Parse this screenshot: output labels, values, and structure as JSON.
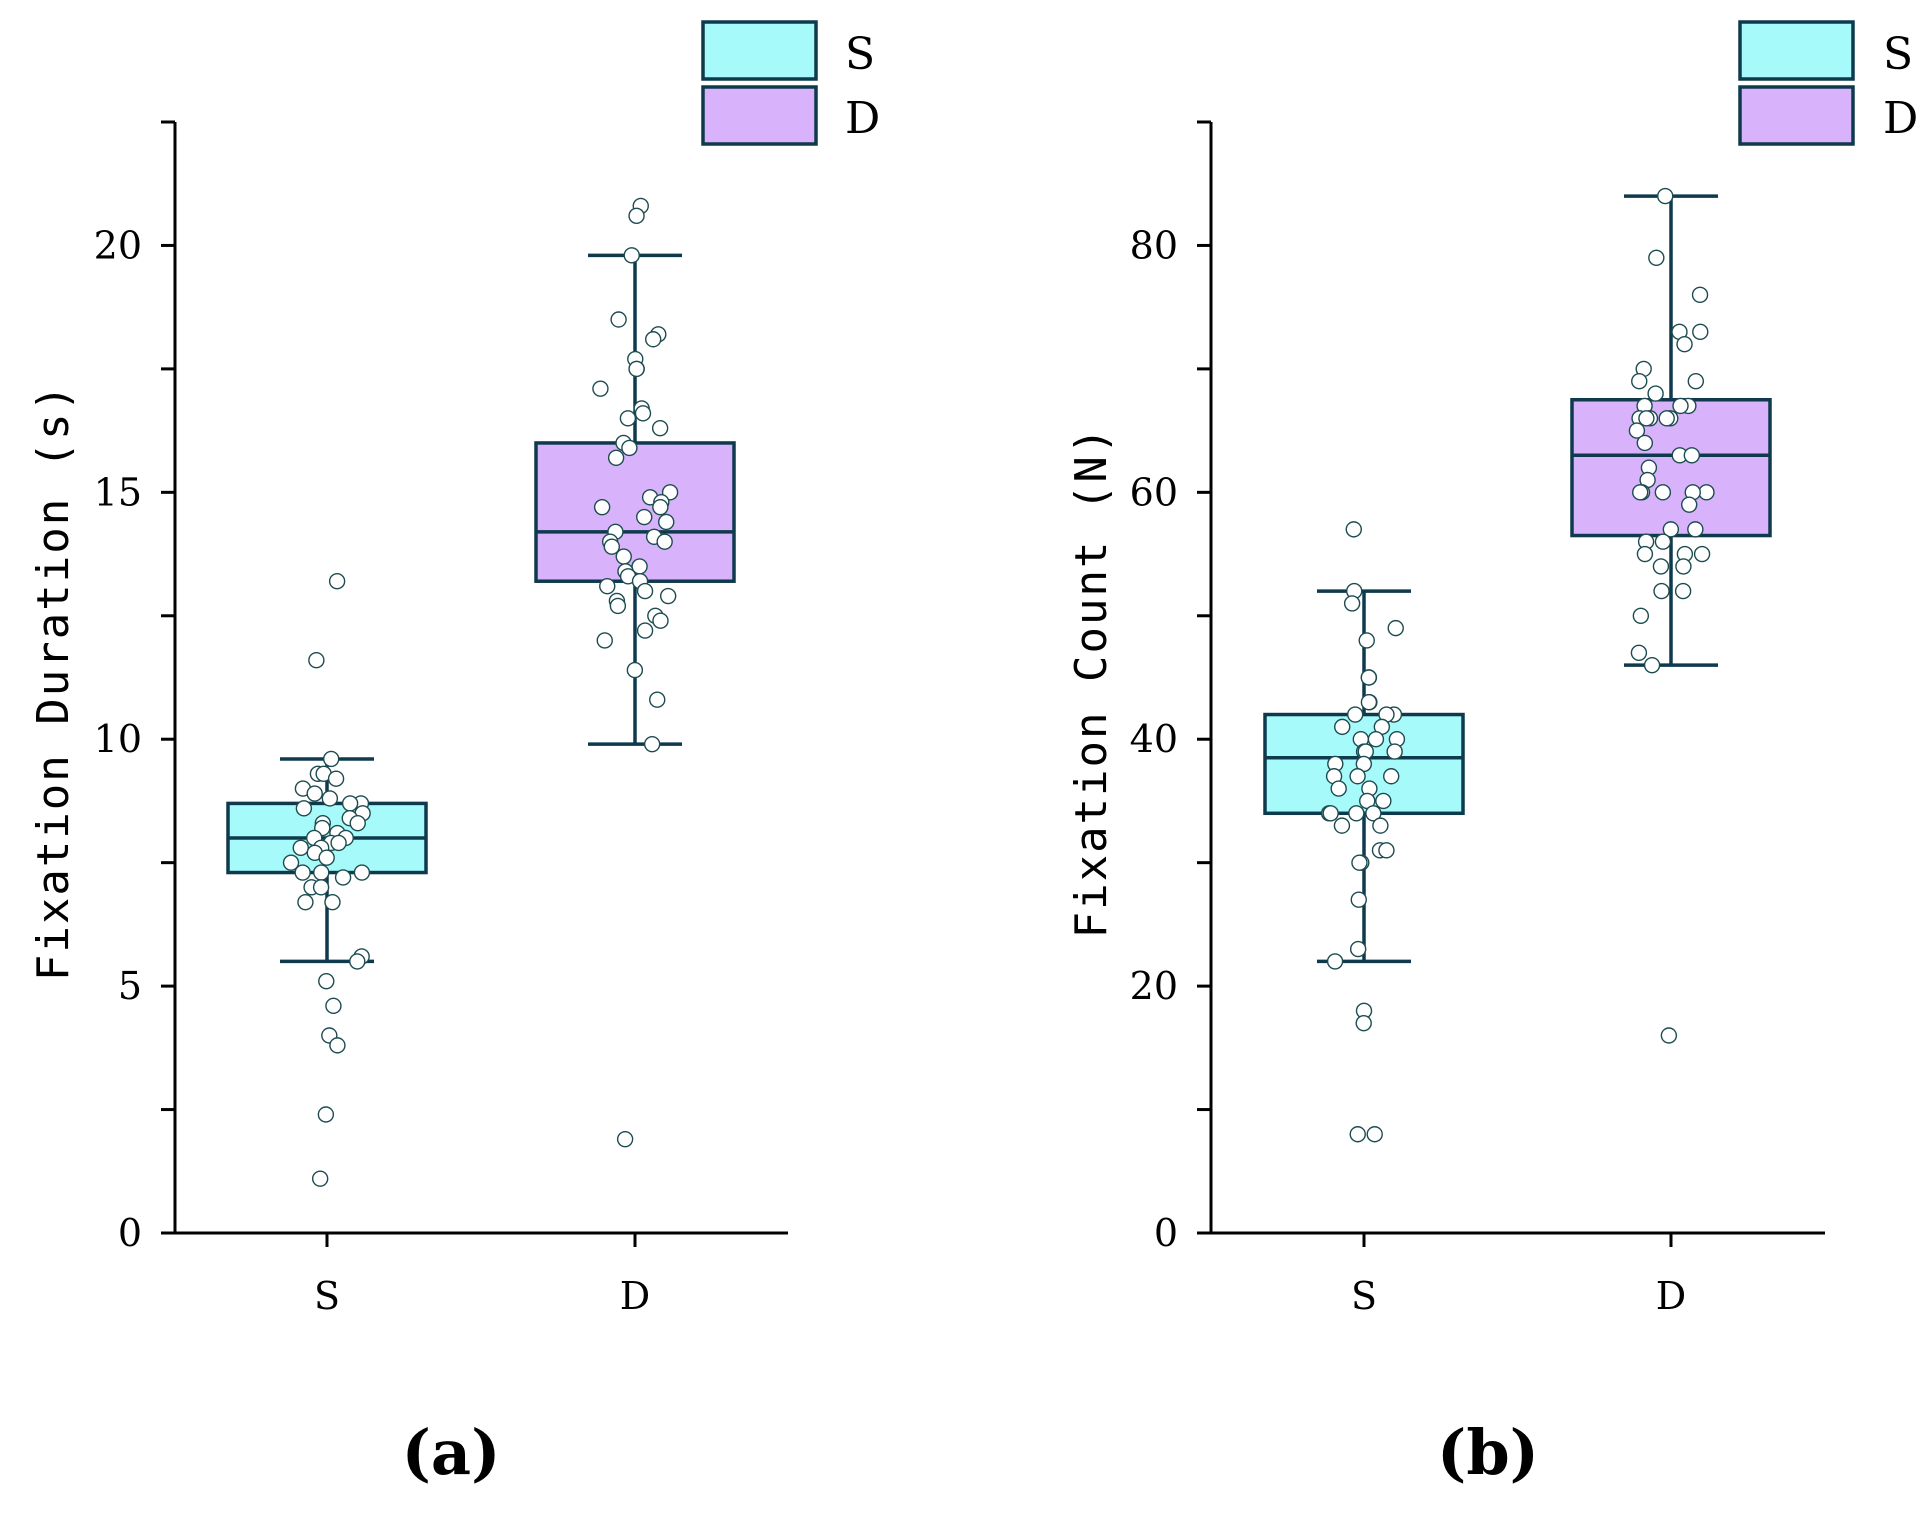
{
  "chart_data": [
    {
      "type": "box",
      "panel_label": "(a)",
      "title": "",
      "xlabel": "",
      "ylabel": "Fixation Duration (s)",
      "ylim": [
        0,
        22.5
      ],
      "yticks": [
        0,
        5,
        10,
        15,
        20
      ],
      "ytick_labels": [
        "0",
        "5",
        "10",
        "15",
        "20"
      ],
      "categories": [
        "S",
        "D"
      ],
      "legend": [
        {
          "name": "S",
          "color": "#a6fafa"
        },
        {
          "name": "D",
          "color": "#d8b2fb"
        }
      ],
      "legend_position": "top-right",
      "boxes": [
        {
          "name": "S",
          "color": "#a6fafa",
          "whisker_low": 5.5,
          "q1": 7.3,
          "median": 8.0,
          "q3": 8.7,
          "whisker_high": 9.6,
          "points": [
            13.2,
            11.6,
            9.6,
            9.3,
            9.3,
            9.2,
            9.0,
            8.9,
            8.8,
            8.7,
            8.7,
            8.6,
            8.5,
            8.4,
            8.3,
            8.3,
            8.2,
            8.1,
            8.0,
            8.0,
            7.9,
            7.9,
            7.8,
            7.8,
            7.7,
            7.6,
            7.5,
            7.3,
            7.3,
            7.3,
            7.2,
            7.0,
            7.0,
            6.7,
            6.7,
            5.6,
            5.5,
            5.1,
            4.6,
            4.0,
            3.8,
            2.4,
            1.1
          ]
        },
        {
          "name": "D",
          "color": "#d8b2fb",
          "whisker_low": 9.9,
          "q1": 13.2,
          "median": 14.2,
          "q3": 16.0,
          "whisker_high": 19.8,
          "points": [
            20.8,
            20.6,
            19.8,
            18.5,
            18.2,
            18.1,
            17.7,
            17.5,
            17.5,
            17.1,
            16.7,
            16.6,
            16.5,
            16.3,
            16.0,
            15.9,
            15.7,
            15.0,
            14.9,
            14.8,
            14.7,
            14.7,
            14.5,
            14.4,
            14.2,
            14.1,
            14.0,
            14.0,
            13.9,
            13.7,
            13.5,
            13.4,
            13.3,
            13.2,
            13.1,
            13.0,
            12.9,
            12.8,
            12.7,
            12.5,
            12.4,
            12.2,
            12.0,
            11.4,
            10.8,
            9.9,
            1.9
          ]
        }
      ]
    },
    {
      "type": "box",
      "panel_label": "(b)",
      "title": "",
      "xlabel": "",
      "ylabel": "Fixation Count (N)",
      "ylim": [
        0,
        90
      ],
      "yticks": [
        0,
        20,
        40,
        60,
        80
      ],
      "ytick_labels": [
        "0",
        "20",
        "40",
        "60",
        "80"
      ],
      "categories": [
        "S",
        "D"
      ],
      "legend": [
        {
          "name": "S",
          "color": "#a6fafa"
        },
        {
          "name": "D",
          "color": "#d8b2fb"
        }
      ],
      "legend_position": "top-right",
      "boxes": [
        {
          "name": "S",
          "color": "#a6fafa",
          "whisker_low": 22,
          "q1": 34,
          "median": 38.5,
          "q3": 42,
          "whisker_high": 52,
          "points": [
            57,
            52,
            51,
            49,
            48,
            45,
            45,
            43,
            43,
            42,
            42,
            42,
            41,
            41,
            40,
            40,
            40,
            39,
            39,
            39,
            38,
            38,
            37,
            37,
            37,
            36,
            36,
            35,
            35,
            34,
            34,
            34,
            34,
            33,
            33,
            31,
            31,
            30,
            30,
            27,
            23,
            22,
            18,
            17,
            8,
            8
          ]
        },
        {
          "name": "D",
          "color": "#d8b2fb",
          "whisker_low": 46,
          "q1": 56.5,
          "median": 63,
          "q3": 67.5,
          "whisker_high": 84,
          "points": [
            84,
            79,
            76,
            73,
            73,
            72,
            70,
            69,
            69,
            68,
            67,
            67,
            67,
            66,
            66,
            66,
            66,
            66,
            65,
            64,
            63,
            63,
            62,
            61,
            60,
            60,
            60,
            60,
            60,
            59,
            57,
            57,
            56,
            56,
            55,
            55,
            55,
            54,
            54,
            52,
            52,
            50,
            47,
            46,
            16
          ]
        }
      ]
    }
  ]
}
